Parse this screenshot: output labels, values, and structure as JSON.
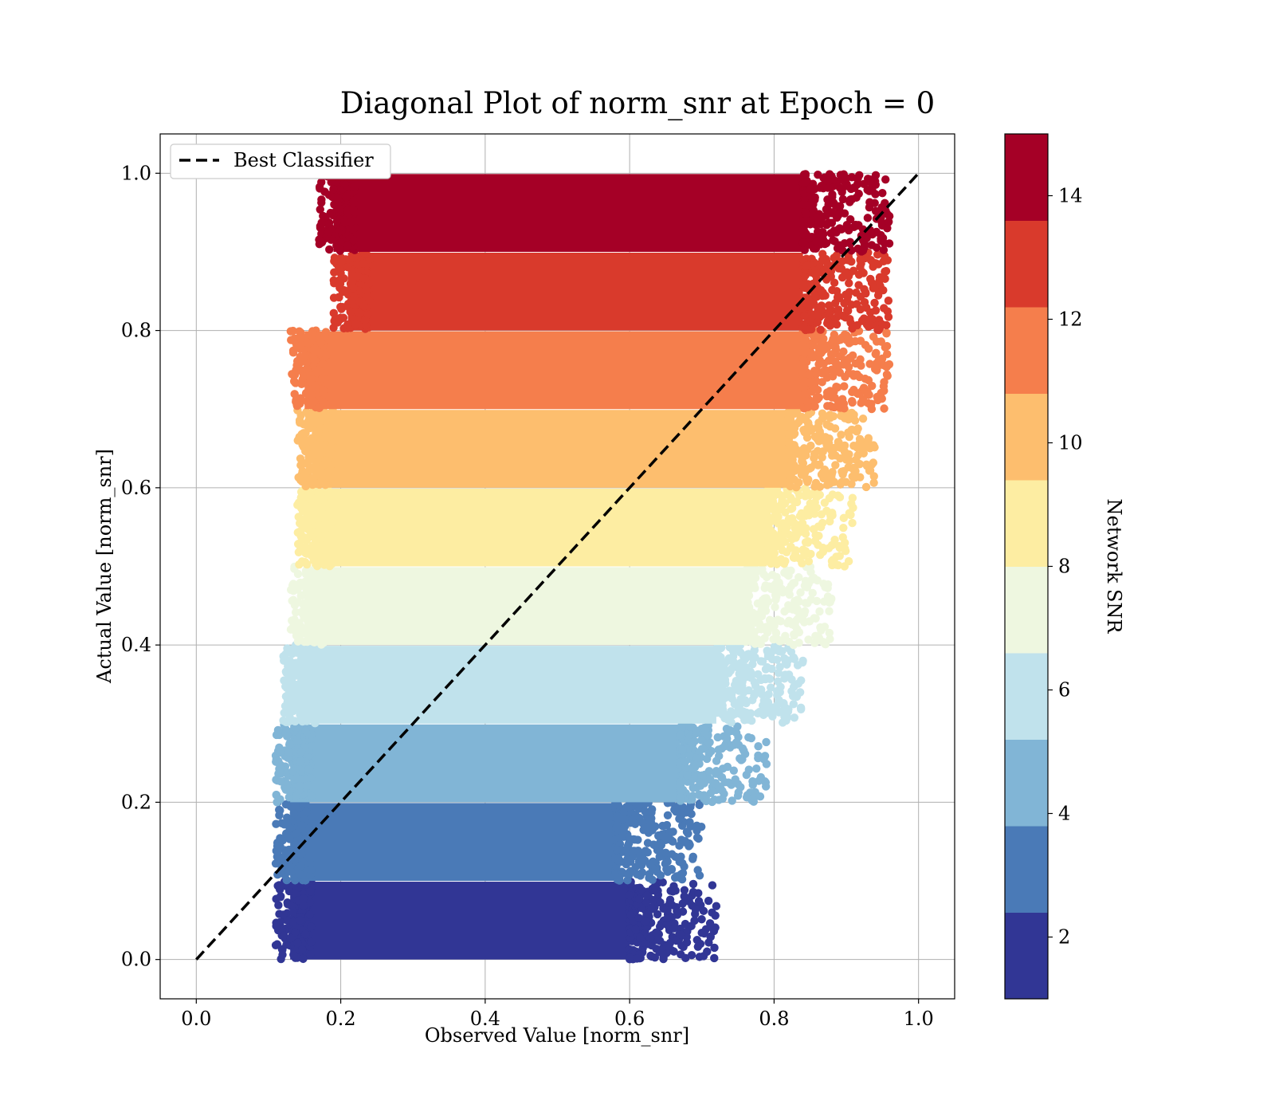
{
  "chart_data": {
    "type": "scatter",
    "title": "Diagonal Plot of norm_snr at Epoch = 0",
    "xlabel": "Observed Value [norm_snr]",
    "ylabel": "Actual Value [norm_snr]",
    "xlim": [
      -0.05,
      1.05
    ],
    "ylim": [
      -0.05,
      1.05
    ],
    "xticks": [
      0.0,
      0.2,
      0.4,
      0.6,
      0.8,
      1.0
    ],
    "yticks": [
      0.0,
      0.2,
      0.4,
      0.6,
      0.8,
      1.0
    ],
    "xtick_labels": [
      "0.0",
      "0.2",
      "0.4",
      "0.6",
      "0.8",
      "1.0"
    ],
    "ytick_labels": [
      "0.0",
      "0.2",
      "0.4",
      "0.6",
      "0.8",
      "1.0"
    ],
    "grid": true,
    "legend": {
      "position": "top-left",
      "entries": [
        "Best Classifier"
      ]
    },
    "reference_line": {
      "name": "Best Classifier",
      "style": "dashed",
      "color": "#000000",
      "x": [
        0.0,
        1.0
      ],
      "y": [
        0.0,
        1.0
      ]
    },
    "colorbar": {
      "label": "Network SNR",
      "range": [
        1,
        15
      ],
      "ticks": [
        2,
        4,
        6,
        8,
        10,
        12,
        14
      ],
      "tick_labels": [
        "2",
        "4",
        "6",
        "8",
        "10",
        "12",
        "14"
      ],
      "colormap": "RdYlBu_r"
    },
    "bands": [
      {
        "y_range": [
          0.0,
          0.1
        ],
        "x_range": [
          0.11,
          0.7
        ],
        "snr_range": [
          1.0,
          2.4
        ],
        "color": "#313695"
      },
      {
        "y_range": [
          0.1,
          0.2
        ],
        "x_range": [
          0.11,
          0.68
        ],
        "snr_range": [
          2.4,
          3.8
        ],
        "color": "#4a7ab7"
      },
      {
        "y_range": [
          0.2,
          0.3
        ],
        "x_range": [
          0.11,
          0.77
        ],
        "snr_range": [
          3.8,
          5.2
        ],
        "color": "#81b5d6"
      },
      {
        "y_range": [
          0.3,
          0.4
        ],
        "x_range": [
          0.12,
          0.82
        ],
        "snr_range": [
          5.2,
          6.6
        ],
        "color": "#c0e2ec"
      },
      {
        "y_range": [
          0.4,
          0.5
        ],
        "x_range": [
          0.13,
          0.86
        ],
        "snr_range": [
          6.6,
          8.0
        ],
        "color": "#eef7e0"
      },
      {
        "y_range": [
          0.5,
          0.6
        ],
        "x_range": [
          0.14,
          0.89
        ],
        "snr_range": [
          8.0,
          9.4
        ],
        "color": "#fdeda2"
      },
      {
        "y_range": [
          0.6,
          0.7
        ],
        "x_range": [
          0.14,
          0.92
        ],
        "snr_range": [
          9.4,
          10.8
        ],
        "color": "#fdbe6e"
      },
      {
        "y_range": [
          0.7,
          0.8
        ],
        "x_range": [
          0.13,
          0.94
        ],
        "snr_range": [
          10.8,
          12.2
        ],
        "color": "#f57e4c"
      },
      {
        "y_range": [
          0.8,
          0.9
        ],
        "x_range": [
          0.19,
          0.94
        ],
        "snr_range": [
          12.2,
          13.6
        ],
        "color": "#d93a2c"
      },
      {
        "y_range": [
          0.9,
          1.0
        ],
        "x_range": [
          0.17,
          0.94
        ],
        "snr_range": [
          13.6,
          15.0
        ],
        "color": "#a50026"
      }
    ]
  }
}
